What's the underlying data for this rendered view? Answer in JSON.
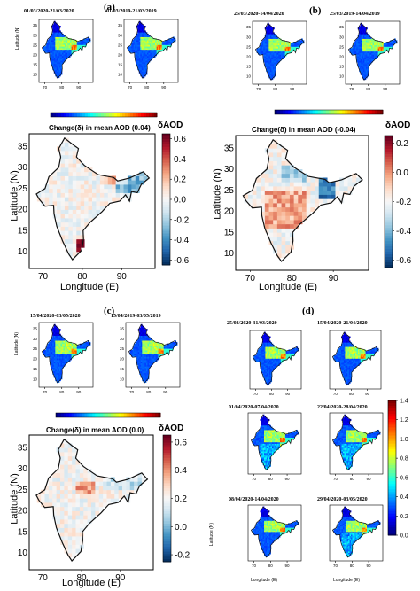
{
  "panel_labels": [
    "(a)",
    "(b)",
    "(c)",
    "(d)"
  ],
  "colors": {
    "map_bg": "#ffffff",
    "outline": "#111111",
    "jet": [
      "#00007f",
      "#0000ff",
      "#0080ff",
      "#00ffff",
      "#80ff80",
      "#ffff00",
      "#ff8000",
      "#ff0000",
      "#7f0000"
    ],
    "rdbu": [
      "#053061",
      "#2166ac",
      "#4393c3",
      "#92c5de",
      "#d1e5f0",
      "#f7f7f7",
      "#fddbc7",
      "#f4a582",
      "#d6604d",
      "#b2182b",
      "#67001f"
    ]
  },
  "chart_data": [
    {
      "type": "heatmap",
      "panel": "(a)",
      "title": "01/03/2020-21/03/2020",
      "ylabel": "Latitude (N)",
      "yticks": [
        "35",
        "30",
        "25",
        "20",
        "15",
        "10"
      ],
      "xticks": [
        "70",
        "80",
        "90"
      ]
    },
    {
      "type": "heatmap",
      "panel": "(a)",
      "title": "01/03/2019-21/03/2019",
      "yticks": [
        "35",
        "30",
        "25",
        "20",
        "15",
        "10"
      ],
      "xticks": [
        "70",
        "80",
        "90"
      ]
    },
    {
      "type": "heatmap",
      "panel": "(a)",
      "title": "Change(δ) in mean AOD (0.04)",
      "xlabel": "Longitude (E)",
      "ylabel": "Latitude (N)",
      "xticks": [
        "70",
        "80",
        "90"
      ],
      "yticks": [
        "35",
        "30",
        "25",
        "20",
        "15",
        "10"
      ],
      "colorbar_label": "δAOD",
      "colorbar_ticks": [
        "0.6",
        "0.4",
        "0.2",
        "0.0",
        "-0.2",
        "-0.4",
        "-0.6"
      ],
      "colorscale": "RdBu_r",
      "mean_change": 0.04
    },
    {
      "type": "heatmap",
      "panel": "(b)",
      "title": "25/03/2020-14/04/2020",
      "yticks": [
        "35",
        "30",
        "25",
        "20",
        "15",
        "10"
      ],
      "xticks": [
        "70",
        "80",
        "90"
      ]
    },
    {
      "type": "heatmap",
      "panel": "(b)",
      "title": "25/03/2019-14/04/2019",
      "yticks": [
        "35",
        "30",
        "25",
        "20",
        "15",
        "10"
      ],
      "xticks": [
        "70",
        "80",
        "90"
      ]
    },
    {
      "type": "heatmap",
      "panel": "(b)",
      "title": "Change(δ) in mean AOD (-0.04)",
      "xlabel": "Longitude (E)",
      "ylabel": "Latitude (N)",
      "xticks": [
        "70",
        "80",
        "90"
      ],
      "yticks": [
        "35",
        "30",
        "25",
        "20",
        "15",
        "10"
      ],
      "colorbar_label": "δAOD",
      "colorbar_ticks": [
        "0.2",
        "0.0",
        "-0.2",
        "-0.4",
        "-0.6"
      ],
      "colorscale": "RdBu_r",
      "mean_change": -0.04
    },
    {
      "type": "heatmap",
      "panel": "(c)",
      "title": "15/04/2020-03/05/2020",
      "ylabel": "Latitude (N)",
      "yticks": [
        "35",
        "30",
        "25",
        "20",
        "15",
        "10"
      ],
      "xticks": [
        "70",
        "80",
        "90"
      ]
    },
    {
      "type": "heatmap",
      "panel": "(c)",
      "title": "15/04/2019-03/05/2019",
      "yticks": [
        "35",
        "30",
        "25",
        "20",
        "15",
        "10"
      ],
      "xticks": [
        "70",
        "80",
        "90"
      ]
    },
    {
      "type": "heatmap",
      "panel": "(c)",
      "title": "Change(δ) in mean AOD (0.0)",
      "xlabel": "Longitude (E)",
      "ylabel": "Latitude (N)",
      "xticks": [
        "70",
        "80",
        "90"
      ],
      "yticks": [
        "35",
        "30",
        "25",
        "20",
        "15",
        "10"
      ],
      "colorbar_label": "δAOD",
      "colorbar_ticks": [
        "0.6",
        "0.4",
        "0.2",
        "0.0",
        "-0.2"
      ],
      "colorscale": "RdBu_r",
      "mean_change": 0.0
    },
    {
      "type": "heatmap",
      "panel": "(d)",
      "title": "25/03/2020-31/03/2020",
      "ylabel": "Latitude (N)",
      "xticks": [
        "70",
        "80",
        "90"
      ]
    },
    {
      "type": "heatmap",
      "panel": "(d)",
      "title": "15/04/2020-21/04/2020",
      "xticks": [
        "70",
        "80",
        "90"
      ]
    },
    {
      "type": "heatmap",
      "panel": "(d)",
      "title": "01/04/2020-07/04/2020",
      "ylabel": "Latitude (N)",
      "xticks": [
        "70",
        "80",
        "90"
      ]
    },
    {
      "type": "heatmap",
      "panel": "(d)",
      "title": "22/04/2020-28/04/2020",
      "xticks": [
        "70",
        "80",
        "90"
      ]
    },
    {
      "type": "heatmap",
      "panel": "(d)",
      "title": "08/04/2020-14/04/2020",
      "xlabel": "Longitude (E)",
      "ylabel": "Latitude (N)",
      "xticks": [
        "70",
        "80",
        "90"
      ]
    },
    {
      "type": "heatmap",
      "panel": "(d)",
      "title": "29/04/2020-03/05/2020",
      "xlabel": "Longitude (E)",
      "xticks": [
        "70",
        "80",
        "90"
      ]
    },
    {
      "type": "colorbar",
      "panel": "(d)",
      "ticks": [
        "1.4",
        "1.2",
        "1.0",
        "0.8",
        "0.6",
        "0.4",
        "0.2",
        "0.0"
      ],
      "range": [
        0,
        1.4
      ],
      "colorscale": "jet"
    }
  ]
}
